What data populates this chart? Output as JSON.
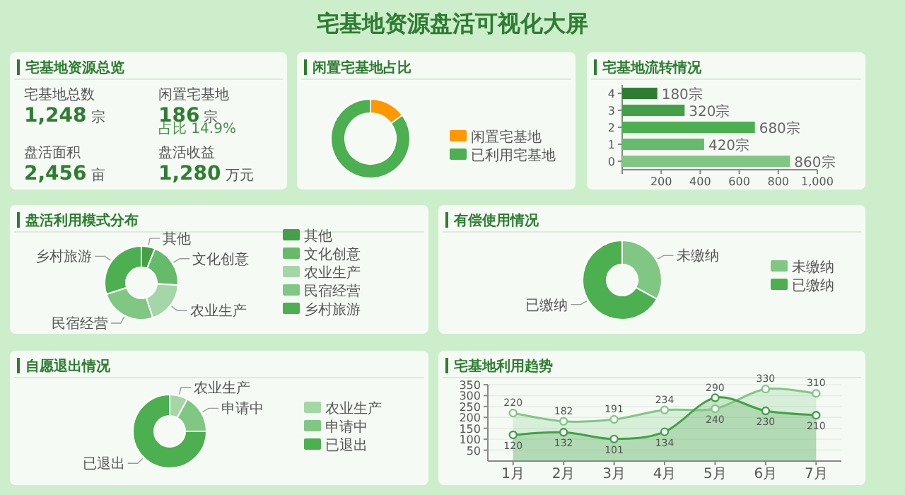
{
  "chart_data": [
    {
      "type": "other",
      "title": "宅基地资源盘活可视化大屏"
    },
    {
      "type": "other",
      "title": "宅基地资源总览",
      "categories": [
        "宅基地总数",
        "闲置宅基地",
        "盘活面积",
        "盘活收益"
      ],
      "value_labels": [
        "1,248",
        "186",
        "2,456",
        "1,280"
      ],
      "annotations": [
        "宗",
        "宗",
        "亩",
        "万元",
        "占比 14.9%"
      ]
    },
    {
      "type": "donut",
      "title": "闲置宅基地占比",
      "categories": [
        "闲置宅基地",
        "已利用宅基地"
      ],
      "values": [
        14.9,
        85.1
      ],
      "colors": [
        "#ff9800",
        "#4caf50"
      ],
      "legend": "right"
    },
    {
      "type": "bar",
      "title": "宅基地流转情况",
      "orientation": "horizontal",
      "categories": [
        "4",
        "3",
        "2",
        "1",
        "0"
      ],
      "values": [
        180,
        320,
        680,
        420,
        860
      ],
      "colors": [
        "#2e7d32",
        "#43a047",
        "#4caf50",
        "#66bb6a",
        "#81c784"
      ],
      "value_labels": [
        "180宗",
        "320宗",
        "680宗",
        "420宗",
        "860宗"
      ],
      "xlim": [
        0,
        1000
      ],
      "xticks": [
        {
          "value": 0,
          "label": null
        },
        200,
        400,
        600,
        800,
        {
          "value": 1000,
          "label": "1,000"
        }
      ]
    },
    {
      "type": "donut",
      "title": "盘活利用模式分布",
      "categories": [
        "其他",
        "文化创意",
        "农业生产",
        "民宿经营",
        "乡村旅游"
      ],
      "values": [
        6,
        20,
        19,
        25,
        30
      ],
      "colors": [
        "#43a047",
        "#66bb6a",
        "#a5d6a7",
        "#81c784",
        "#4caf50"
      ],
      "legend": "right"
    },
    {
      "type": "donut",
      "title": "有偿使用情况",
      "categories": [
        "未缴纳",
        "已缴纳"
      ],
      "values": [
        33,
        67
      ],
      "colors": [
        "#81c784",
        "#4caf50"
      ],
      "legend": "right"
    },
    {
      "type": "donut",
      "title": "自愿退出情况",
      "categories": [
        "农业生产",
        "申请中",
        "已退出"
      ],
      "values": [
        8,
        17,
        75
      ],
      "colors": [
        "#a5d6a7",
        "#81c784",
        "#4caf50"
      ],
      "legend": "right"
    },
    {
      "type": "line",
      "title": "宅基地利用趋势",
      "categories": [
        "1月",
        "2月",
        "3月",
        "4月",
        "5月",
        "6月",
        "7月"
      ],
      "series": [
        {
          "type": "area",
          "color": "#81c784",
          "values": [
            220,
            182,
            191,
            234,
            240,
            330,
            310
          ]
        },
        {
          "type": "area",
          "color": "#43a047",
          "values": [
            120,
            132,
            101,
            134,
            290,
            230,
            210
          ]
        }
      ],
      "ylim": [
        0,
        350
      ],
      "yticks": [
        50,
        100,
        150,
        200,
        250,
        300,
        350
      ],
      "grid": "y",
      "marker": "circle",
      "data_labels": true
    }
  ]
}
